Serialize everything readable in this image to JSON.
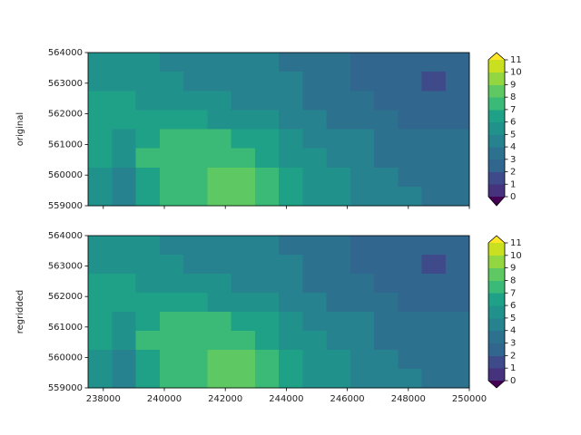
{
  "chart_data": [
    {
      "type": "contour",
      "ylabel": "original",
      "xlim": [
        237500,
        250000
      ],
      "ylim": [
        559000,
        564000
      ],
      "xticks": [
        238000,
        240000,
        242000,
        244000,
        246000,
        248000,
        250000
      ],
      "yticks": [
        559000,
        560000,
        561000,
        562000,
        563000,
        564000
      ],
      "xtick_labels": false,
      "levels": [
        0,
        1,
        2,
        3,
        4,
        5,
        6,
        7,
        8,
        9,
        10,
        11
      ],
      "colors": [
        "#46337e",
        "#3e4a89",
        "#31668e",
        "#2c728e",
        "#26828e",
        "#21918c",
        "#1fa187",
        "#3aba76",
        "#5ec962",
        "#92d741",
        "#c8e020"
      ],
      "under_color": "#440154",
      "over_color": "#fde725",
      "z": [
        [
          5.5,
          5.5,
          5.2,
          4.8,
          4.5,
          4.3,
          4.2,
          4.1,
          3.8,
          3.5,
          3.2,
          2.5,
          2.3,
          2.2,
          2.1,
          2.2
        ],
        [
          5.8,
          5.6,
          5.5,
          5.2,
          4.8,
          4.5,
          4.3,
          4.2,
          4.0,
          3.6,
          3.3,
          2.8,
          2.4,
          2.3,
          1.8,
          2.3
        ],
        [
          6.2,
          6.0,
          5.8,
          5.6,
          5.3,
          5.0,
          4.7,
          4.5,
          4.3,
          3.9,
          3.5,
          3.2,
          2.8,
          2.5,
          2.4,
          2.4
        ],
        [
          6.5,
          6.2,
          6.5,
          6.8,
          6.3,
          5.8,
          5.3,
          5.0,
          4.7,
          4.3,
          3.9,
          3.5,
          3.2,
          2.9,
          2.7,
          2.6
        ],
        [
          6.2,
          5.5,
          6.8,
          7.2,
          7.4,
          7.2,
          6.8,
          6.0,
          5.4,
          4.9,
          4.4,
          4.0,
          3.6,
          3.3,
          3.1,
          3.0
        ],
        [
          6.0,
          5.0,
          7.0,
          7.5,
          7.6,
          7.7,
          7.5,
          6.9,
          5.9,
          5.2,
          4.7,
          4.2,
          3.9,
          3.6,
          3.4,
          3.3
        ],
        [
          5.5,
          4.5,
          6.8,
          7.4,
          7.6,
          8.0,
          8.2,
          7.6,
          6.4,
          5.6,
          5.0,
          4.5,
          4.1,
          3.8,
          3.6,
          3.5
        ],
        [
          5.0,
          4.5,
          6.5,
          7.3,
          7.5,
          8.2,
          8.5,
          7.8,
          6.5,
          5.8,
          5.2,
          4.7,
          4.3,
          4.0,
          3.8,
          3.7
        ]
      ]
    },
    {
      "type": "contour",
      "ylabel": "regridded",
      "xlim": [
        237500,
        250000
      ],
      "ylim": [
        559000,
        564000
      ],
      "xticks": [
        238000,
        240000,
        242000,
        244000,
        246000,
        248000,
        250000
      ],
      "yticks": [
        559000,
        560000,
        561000,
        562000,
        563000,
        564000
      ],
      "xtick_labels": true,
      "levels": [
        0,
        1,
        2,
        3,
        4,
        5,
        6,
        7,
        8,
        9,
        10,
        11
      ],
      "colors": [
        "#46337e",
        "#3e4a89",
        "#31668e",
        "#2c728e",
        "#26828e",
        "#21918c",
        "#1fa187",
        "#3aba76",
        "#5ec962",
        "#92d741",
        "#c8e020"
      ],
      "under_color": "#440154",
      "over_color": "#fde725",
      "z": [
        [
          5.5,
          5.5,
          5.2,
          4.8,
          4.5,
          4.3,
          4.2,
          4.1,
          3.8,
          3.5,
          3.2,
          2.5,
          2.3,
          2.2,
          2.1,
          2.2
        ],
        [
          5.8,
          5.6,
          5.5,
          5.2,
          4.8,
          4.5,
          4.3,
          4.2,
          4.0,
          3.6,
          3.3,
          2.8,
          2.4,
          2.3,
          1.8,
          2.3
        ],
        [
          6.2,
          6.0,
          5.8,
          5.6,
          5.3,
          5.0,
          4.7,
          4.5,
          4.3,
          3.9,
          3.5,
          3.2,
          2.8,
          2.5,
          2.4,
          2.4
        ],
        [
          6.5,
          6.2,
          6.5,
          6.8,
          6.3,
          5.8,
          5.3,
          5.0,
          4.7,
          4.3,
          3.9,
          3.5,
          3.2,
          2.9,
          2.7,
          2.6
        ],
        [
          6.2,
          5.5,
          6.8,
          7.2,
          7.4,
          7.2,
          6.8,
          6.0,
          5.4,
          4.9,
          4.4,
          4.0,
          3.6,
          3.3,
          3.1,
          3.0
        ],
        [
          6.0,
          5.0,
          7.0,
          7.5,
          7.6,
          7.7,
          7.5,
          6.9,
          5.9,
          5.2,
          4.7,
          4.2,
          3.9,
          3.6,
          3.4,
          3.3
        ],
        [
          5.5,
          4.5,
          6.8,
          7.4,
          7.6,
          8.0,
          8.2,
          7.6,
          6.4,
          5.6,
          5.0,
          4.5,
          4.1,
          3.8,
          3.6,
          3.5
        ],
        [
          5.0,
          4.5,
          6.5,
          7.3,
          7.5,
          8.2,
          8.5,
          7.8,
          6.5,
          5.8,
          5.2,
          4.7,
          4.3,
          4.0,
          3.8,
          3.7
        ]
      ]
    }
  ]
}
